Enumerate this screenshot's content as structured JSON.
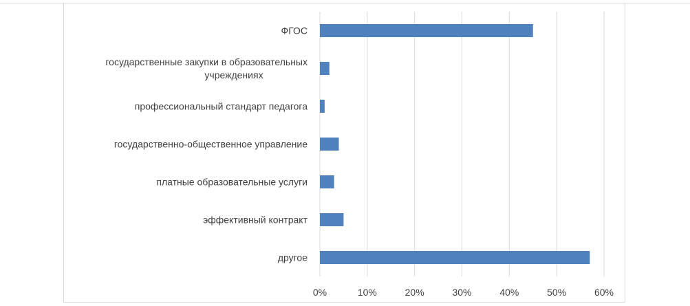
{
  "chart_data": {
    "type": "bar",
    "orientation": "horizontal",
    "title": "",
    "xlabel": "",
    "ylabel": "",
    "categories": [
      [
        "ФГОС"
      ],
      [
        "государственные закупки в образовательных",
        "учреждениях"
      ],
      [
        "профессиональный стандарт педагога"
      ],
      [
        "государственно-общественное управление"
      ],
      [
        "платные образовательные услуги"
      ],
      [
        "эффективный контракт"
      ],
      [
        "другое"
      ]
    ],
    "values": [
      45,
      2,
      1,
      4,
      3,
      5,
      57
    ],
    "xlim": [
      0,
      60
    ],
    "ticks": [
      0,
      10,
      20,
      30,
      40,
      50,
      60
    ],
    "tick_labels": [
      "0%",
      "10%",
      "20%",
      "30%",
      "40%",
      "50%",
      "60%"
    ],
    "grid": true,
    "legend": "none",
    "bar_color": "#4f81bd",
    "grid_color": "#d9d9d9"
  }
}
